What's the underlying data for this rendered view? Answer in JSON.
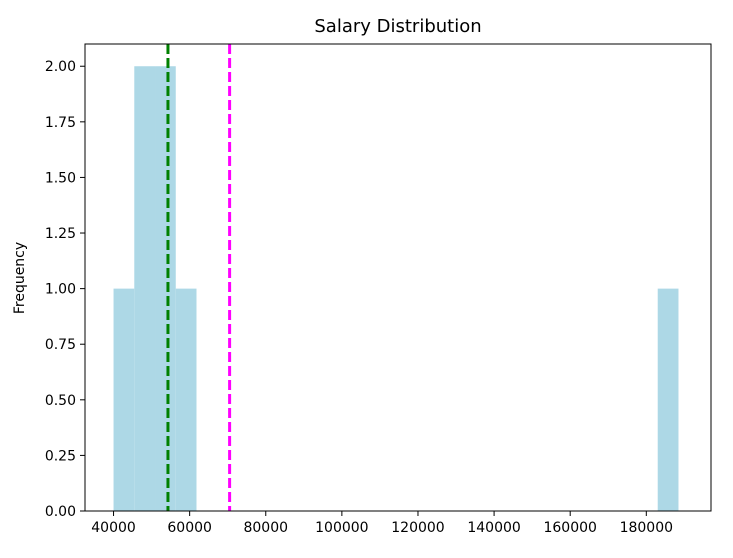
{
  "chart_data": {
    "type": "bar",
    "subtype": "histogram",
    "title": "Salary Distribution",
    "xlabel": "",
    "ylabel": "Frequency",
    "xlim": [
      32500,
      197000
    ],
    "ylim": [
      0,
      2.1
    ],
    "xticks": [
      40000,
      60000,
      80000,
      100000,
      120000,
      140000,
      160000,
      180000
    ],
    "xtick_labels": [
      "40000",
      "60000",
      "80000",
      "100000",
      "120000",
      "140000",
      "160000",
      "180000"
    ],
    "yticks": [
      0,
      0.25,
      0.5,
      0.75,
      1.0,
      1.25,
      1.5,
      1.75,
      2.0
    ],
    "ytick_labels": [
      "0.00",
      "0.25",
      "0.50",
      "0.75",
      "1.00",
      "1.25",
      "1.50",
      "1.75",
      "2.00"
    ],
    "bins": [
      {
        "x0": 40000,
        "x1": 45450,
        "count": 1
      },
      {
        "x0": 45450,
        "x1": 50900,
        "count": 2
      },
      {
        "x0": 50900,
        "x1": 56350,
        "count": 2
      },
      {
        "x0": 56350,
        "x1": 61800,
        "count": 1
      },
      {
        "x0": 183000,
        "x1": 188450,
        "count": 1
      }
    ],
    "reference_lines": [
      {
        "x": 54300,
        "color": "#008000",
        "style": "dashed"
      },
      {
        "x": 70500,
        "color": "#ff00ff",
        "style": "dashed"
      }
    ],
    "bar_color": "#add8e6",
    "grid": false
  }
}
